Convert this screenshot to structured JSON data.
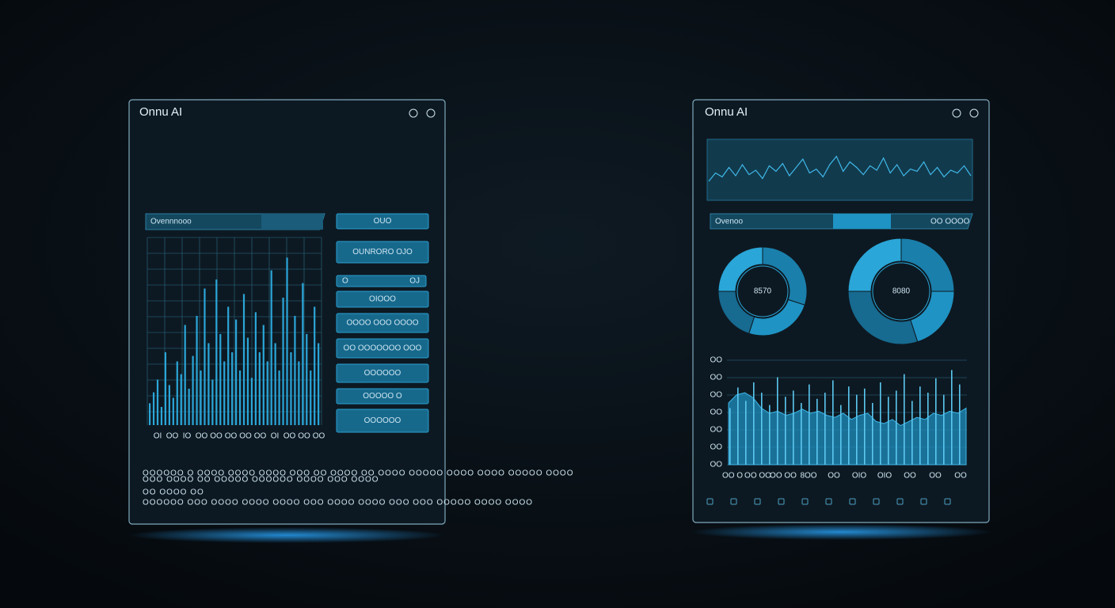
{
  "left_panel": {
    "title": "Onnu AI",
    "tab": "Ovennnooo",
    "chart": {
      "values": [
        12,
        18,
        25,
        10,
        40,
        22,
        15,
        35,
        28,
        55,
        20,
        38,
        60,
        30,
        75,
        45,
        25,
        80,
        50,
        35,
        65,
        40,
        58,
        30,
        72,
        48,
        26,
        62,
        40,
        55,
        35,
        85,
        45,
        30,
        70,
        92,
        40,
        60,
        35,
        78,
        50,
        30,
        65,
        45
      ],
      "x_labels": [
        "OI",
        "OO",
        "IO",
        "OO",
        "OO",
        "OO",
        "OO",
        "OO",
        "OI",
        "OO",
        "OO",
        "OO"
      ]
    },
    "buttons": [
      "OUO",
      "OUNRORO OJO",
      "OIOOO",
      "OOOO OOO OOOO",
      "OO OOOOOOO OOO",
      "OOOOOO",
      "OOOOO O",
      "OOOOOO"
    ],
    "slider": [
      "O",
      "OJ"
    ],
    "footer": [
      "OOOOOO O OOOO OOOO OOOO OOO OO OOOO OO OOOO OOOOO OOOO OOOO OOOOO OOOO",
      "OOO OOOO OO OOOOO OOOOOO OOOO OOO OOOO",
      "OO OOOO OO",
      "OOOOOO OOO OOOO OOOO OOOO OOO OOOO OOOO OOO OOO OOOOO OOOO OOOO"
    ]
  },
  "right_panel": {
    "title": "Onnu AI",
    "sparkline": {
      "values": [
        30,
        45,
        38,
        55,
        40,
        60,
        42,
        50,
        35,
        58,
        48,
        62,
        40,
        55,
        70,
        45,
        52,
        38,
        60,
        75,
        48,
        65,
        55,
        42,
        58,
        50,
        72,
        45,
        60,
        40,
        52,
        48,
        65,
        42,
        55,
        38,
        50,
        45,
        58,
        40
      ]
    },
    "tabs": [
      "Ovenoo",
      "OO OOOO"
    ],
    "donuts": [
      {
        "label": "8570",
        "segments": [
          30,
          25,
          20,
          25
        ]
      },
      {
        "label": "8080",
        "segments": [
          25,
          20,
          30,
          25
        ]
      }
    ],
    "chart": {
      "area": [
        60,
        68,
        70,
        65,
        55,
        50,
        52,
        48,
        50,
        54,
        50,
        52,
        48,
        46,
        50,
        44,
        48,
        50,
        42,
        40,
        44,
        38,
        42,
        46,
        44,
        50,
        48,
        52,
        50,
        55
      ],
      "bars": [
        55,
        75,
        62,
        80,
        70,
        58,
        85,
        66,
        72,
        60,
        78,
        64,
        70,
        82,
        58,
        76,
        68,
        74,
        60,
        80,
        66,
        72,
        88,
        62,
        76,
        70,
        84,
        68,
        92,
        78
      ],
      "y_labels": [
        "OO",
        "OO",
        "OO",
        "OO",
        "OO",
        "OO",
        "OO"
      ],
      "x_labels": [
        "OO O",
        "OO OO",
        "OO OO",
        "8OO",
        "OO",
        "OIO",
        "OIO",
        "OO",
        "OO",
        "OO"
      ]
    }
  }
}
